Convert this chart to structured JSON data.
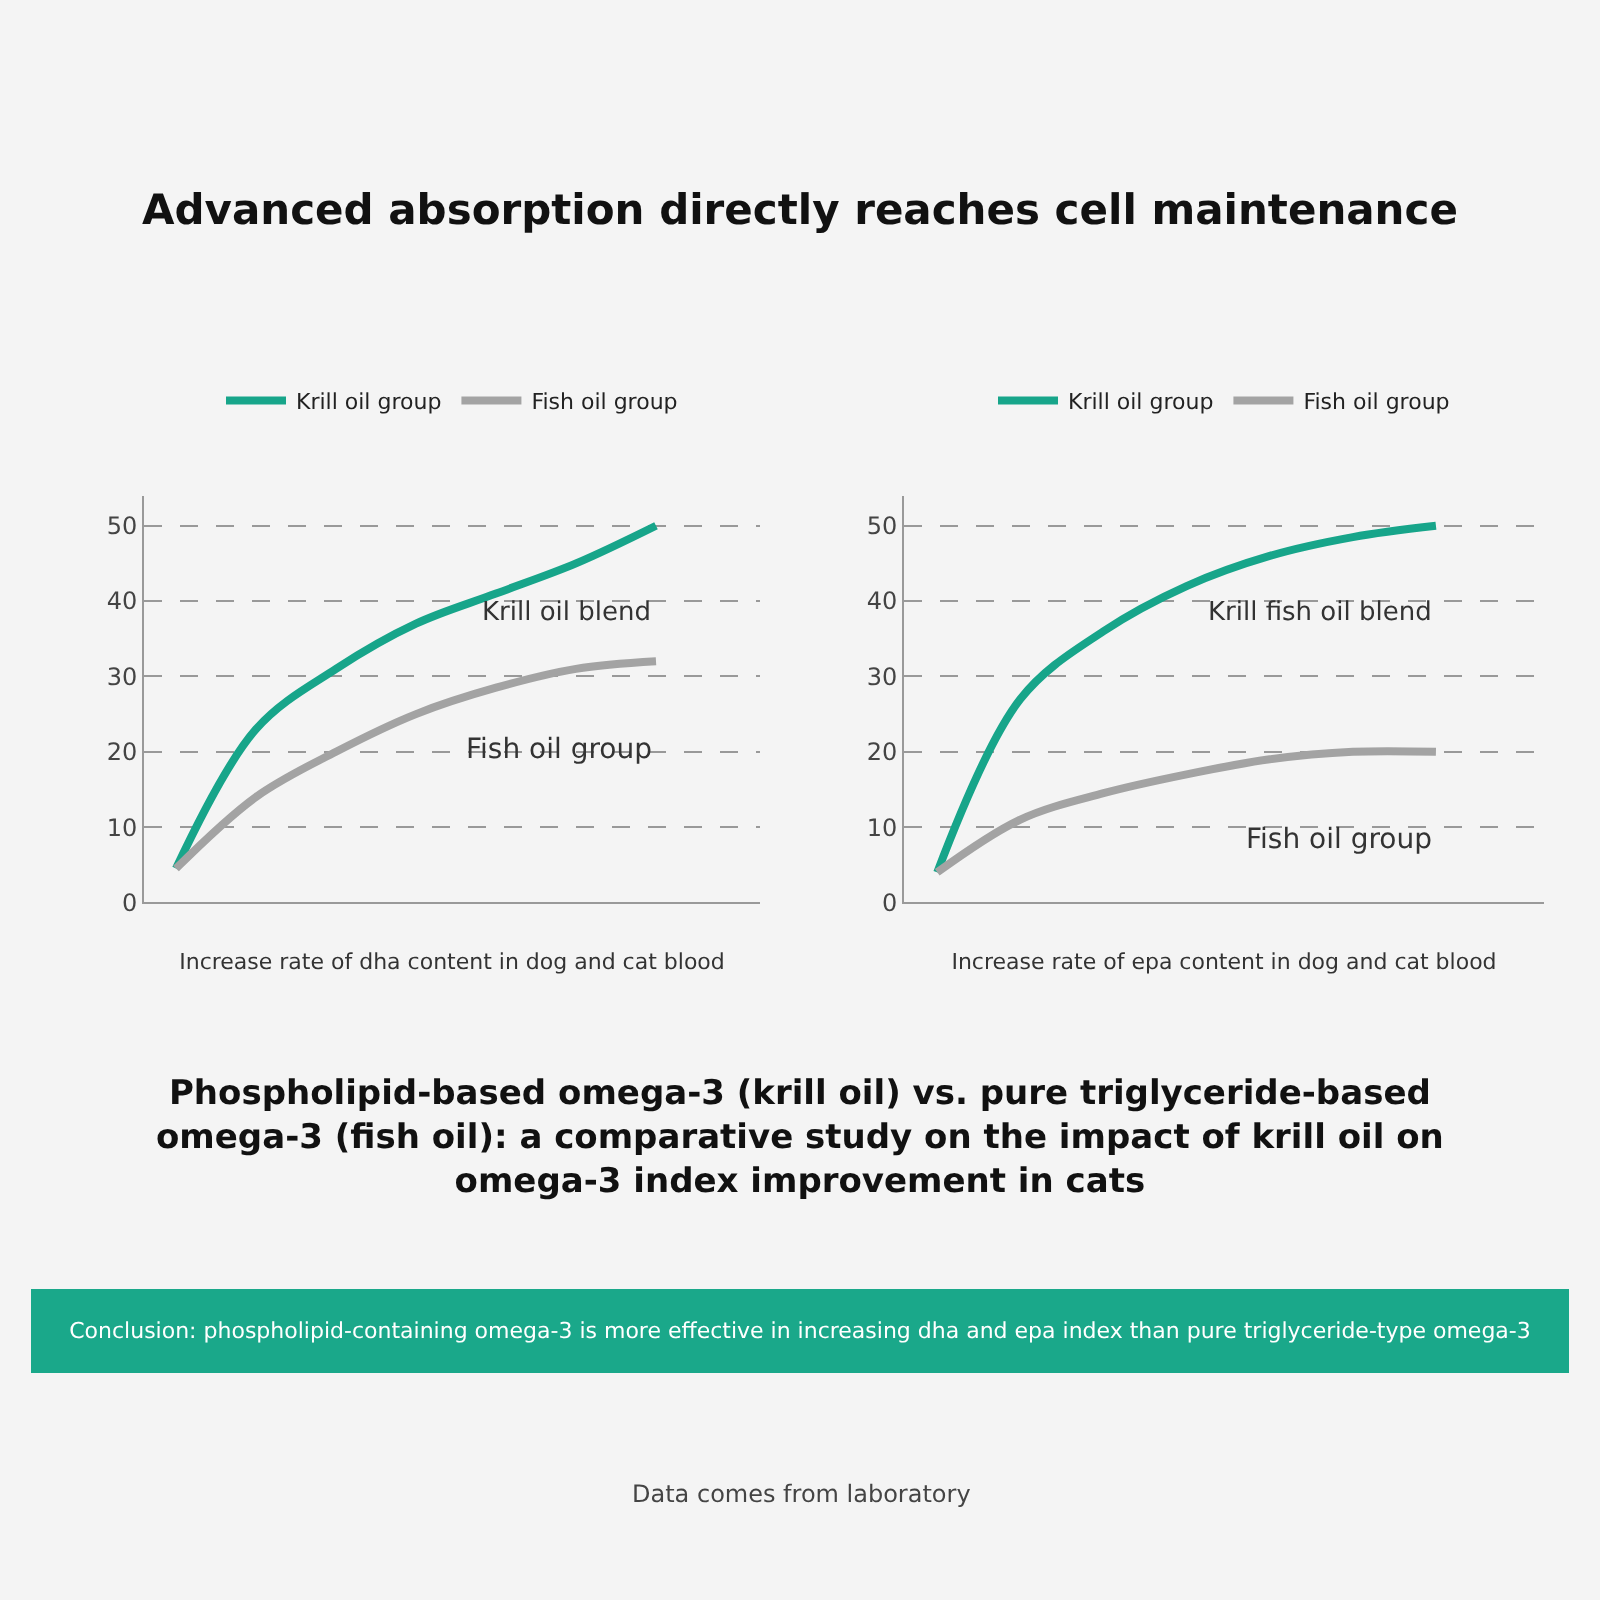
{
  "chart_data": [
    {
      "type": "line",
      "title": "Advanced absorption directly reaches cell maintenance",
      "subtitle": "Phospholipid-based omega-3 (krill oil) vs. pure triglyceride-based omega-3 (fish oil): a comparative study on the impact of krill oil on omega-3 index improvement in cats",
      "xlabel": "Increase rate of dha content in dog and cat blood",
      "categories": [
        null,
        null,
        null,
        null,
        null,
        null,
        null
      ],
      "series": [
        {
          "name": "Krill oil group",
          "color": "#17a58a",
          "values": [
            4.5,
            23,
            31,
            37,
            41,
            45,
            50
          ]
        },
        {
          "name": "Fish oil group",
          "color": "#a3a3a3",
          "values": [
            4.5,
            14,
            20,
            25,
            28.5,
            31,
            32
          ]
        }
      ],
      "annotations": [
        "Krill oil blend",
        "Fish oil group"
      ],
      "ylim": [
        0,
        54
      ],
      "yticks": [
        0,
        10,
        20,
        30,
        40,
        50
      ],
      "grid": "y",
      "legend": "top",
      "tick_labels": "y"
    },
    {
      "type": "line",
      "xlabel": "Increase rate of epa content in dog and cat blood",
      "categories": [
        null,
        null,
        null,
        null,
        null,
        null,
        null
      ],
      "series": [
        {
          "name": "Krill oil group",
          "color": "#17a58a",
          "values": [
            4,
            27,
            36,
            42,
            46,
            48.5,
            50
          ]
        },
        {
          "name": "Fish oil group",
          "color": "#a3a3a3",
          "values": [
            4,
            11,
            14.5,
            17,
            19,
            20,
            20
          ]
        }
      ],
      "annotations": [
        "Krill fish oil blend",
        "Fish oil group",
        "Conclusion: phospholipid-containing omega-3 is more effective in increasing dha and epa index than pure triglyceride-type omega-3",
        "Data comes from laboratory"
      ],
      "ylim": [
        0,
        54
      ],
      "yticks": [
        0,
        10,
        20,
        30,
        40,
        50
      ],
      "grid": "y",
      "legend": "top",
      "tick_labels": "y"
    }
  ]
}
